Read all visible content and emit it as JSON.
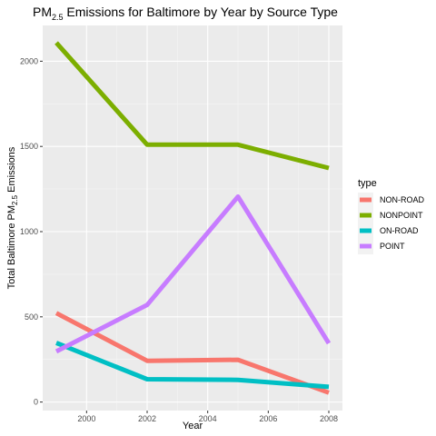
{
  "chart_data": {
    "type": "line",
    "title": {
      "prefix": "PM",
      "subscript": "2.5",
      "suffix": " Emissions for Baltimore by Year by Source Type"
    },
    "xlabel": "Year",
    "ylabel": {
      "prefix": "Total Baltimore PM",
      "subscript": "2.5",
      "suffix": " Emissions"
    },
    "x": [
      1999,
      2002,
      2005,
      2008
    ],
    "xlim": [
      1998.55,
      2008.45
    ],
    "ylim": [
      -50,
      2210
    ],
    "xticks": [
      2000,
      2002,
      2004,
      2006,
      2008
    ],
    "yticks": [
      0,
      500,
      1000,
      1500,
      2000
    ],
    "grid": true,
    "legend_position": "right",
    "legend_title": "type",
    "series": [
      {
        "name": "NON-ROAD",
        "color": "#F8766D",
        "values": [
          522,
          242,
          248,
          55
        ]
      },
      {
        "name": "NONPOINT",
        "color": "#7CAE00",
        "values": [
          2108,
          1510,
          1510,
          1373
        ]
      },
      {
        "name": "ON-ROAD",
        "color": "#00BFC4",
        "values": [
          347,
          134,
          130,
          89
        ]
      },
      {
        "name": "POINT",
        "color": "#C77CFF",
        "values": [
          297,
          570,
          1205,
          345
        ]
      }
    ]
  }
}
